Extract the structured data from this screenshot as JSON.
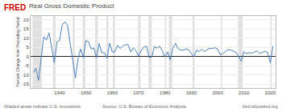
{
  "chart_data": {
    "type": "line",
    "title": "Real Gross Domestic Product",
    "y_label": "Percent Change from Preceding Period",
    "annotations": [
      "FRED",
      "Shaded areas indicate U.S. recessions.",
      "Source: U.S. Bureau of Economic Analysis",
      "fred.stlouisfed.org"
    ],
    "x": [
      1930,
      1931,
      1932,
      1933,
      1934,
      1935,
      1936,
      1937,
      1938,
      1939,
      1940,
      1941,
      1942,
      1943,
      1944,
      1945,
      1946,
      1947,
      1948,
      1949,
      1950,
      1951,
      1952,
      1953,
      1954,
      1955,
      1956,
      1957,
      1958,
      1959,
      1960,
      1961,
      1962,
      1963,
      1964,
      1965,
      1966,
      1967,
      1968,
      1969,
      1970,
      1971,
      1972,
      1973,
      1974,
      1975,
      1976,
      1977,
      1978,
      1979,
      1980,
      1981,
      1982,
      1983,
      1984,
      1985,
      1986,
      1987,
      1988,
      1989,
      1990,
      1991,
      1992,
      1993,
      1994,
      1995,
      1996,
      1997,
      1998,
      1999,
      2000,
      2001,
      2002,
      2003,
      2004,
      2005,
      2006,
      2007,
      2008,
      2009,
      2010,
      2011,
      2012,
      2013,
      2014,
      2015,
      2016,
      2017,
      2018,
      2019,
      2020,
      2021
    ],
    "values": [
      -8.5,
      -6.4,
      -12.9,
      -1.3,
      10.8,
      8.9,
      12.9,
      5.1,
      -3.3,
      8.0,
      8.8,
      17.1,
      18.9,
      17.0,
      8.0,
      -1.0,
      -11.6,
      -1.1,
      4.1,
      -0.6,
      8.7,
      8.0,
      4.1,
      4.7,
      -0.6,
      7.1,
      2.1,
      2.1,
      -0.9,
      7.3,
      2.6,
      2.6,
      6.1,
      4.4,
      5.8,
      6.4,
      6.5,
      2.5,
      4.8,
      3.1,
      0.2,
      3.3,
      5.3,
      5.6,
      -0.5,
      -0.2,
      5.4,
      4.6,
      5.6,
      3.2,
      -0.3,
      2.5,
      -1.8,
      4.6,
      7.2,
      4.2,
      3.5,
      3.5,
      4.2,
      3.7,
      1.9,
      -0.1,
      3.6,
      2.7,
      4.0,
      2.7,
      3.8,
      4.5,
      4.4,
      4.8,
      4.1,
      1.0,
      1.8,
      2.8,
      3.8,
      3.5,
      2.9,
      2.4,
      -0.1,
      -2.5,
      2.6,
      1.6,
      2.2,
      1.8,
      2.5,
      3.1,
      1.7,
      2.3,
      2.9,
      2.3,
      -3.4,
      5.7
    ],
    "color": "#4f81bd",
    "recessions": [
      [
        1929.75,
        1933.25
      ],
      [
        1937.5,
        1938.5
      ],
      [
        1945.0,
        1945.75
      ],
      [
        1948.75,
        1949.75
      ],
      [
        1953.5,
        1954.5
      ],
      [
        1957.75,
        1958.5
      ],
      [
        1960.25,
        1961.0
      ],
      [
        1969.75,
        1970.75
      ],
      [
        1973.75,
        1975.0
      ],
      [
        1980.0,
        1980.5
      ],
      [
        1981.5,
        1982.75
      ],
      [
        1990.5,
        1991.25
      ],
      [
        2001.25,
        2001.75
      ],
      [
        2007.75,
        2009.5
      ],
      [
        2020.0,
        2020.5
      ]
    ],
    "xlim": [
      1929,
      2022
    ],
    "ylim": [
      -17,
      22
    ],
    "xticks": [
      1940,
      1950,
      1960,
      1970,
      1980,
      1990,
      2000,
      2010,
      2020
    ],
    "yticks": [
      -15,
      -10,
      -5,
      0,
      5,
      10,
      15,
      20
    ],
    "grid": true
  }
}
